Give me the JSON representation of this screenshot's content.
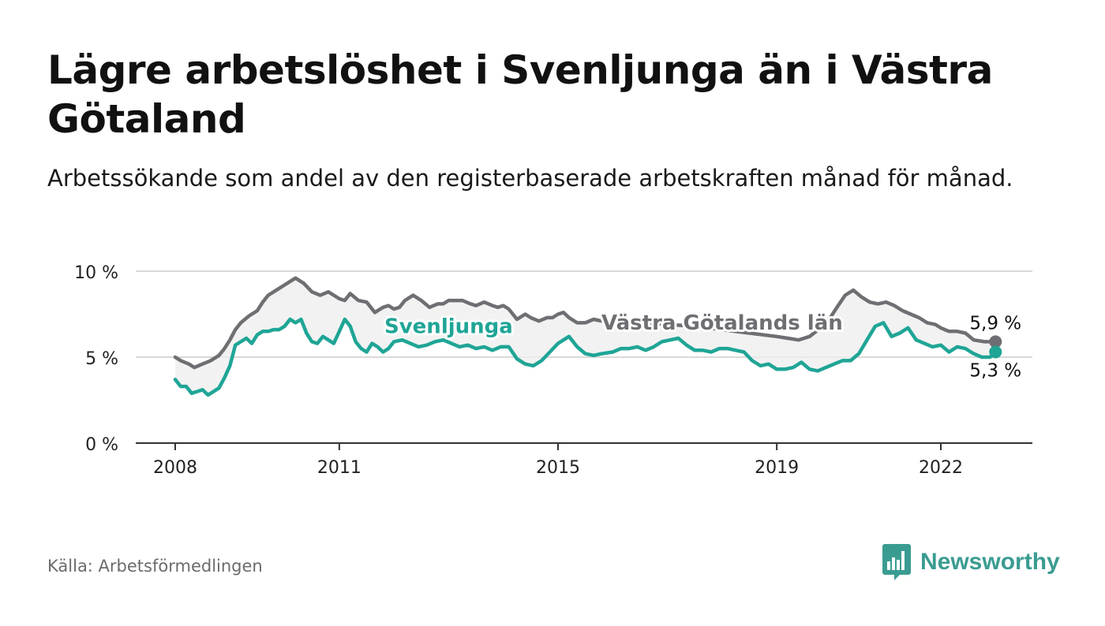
{
  "header": {
    "title": "Lägre arbetslöshet i Svenljunga än i Västra Götaland",
    "subtitle": "Arbetssökande som andel av den registerbaserade arbetskraften månad för månad."
  },
  "footer": {
    "source": "Källa: Arbetsförmedlingen",
    "brand": "Newsworthy",
    "brand_icon": "bar-chart-icon"
  },
  "colors": {
    "region": "#6e6e73",
    "municipality": "#1fa596",
    "band": "#ededed",
    "grid": "#d9d9d9",
    "axis": "#333333",
    "brand": "#3a9c91"
  },
  "chart_data": {
    "type": "line",
    "title": "Lägre arbetslöshet i Svenljunga än i Västra Götaland",
    "xlabel": "",
    "ylabel": "",
    "xlim": [
      2007.9,
      2023.5
    ],
    "ylim": [
      0,
      10
    ],
    "y_ticks": [
      {
        "value": 0,
        "label": "0 %"
      },
      {
        "value": 5,
        "label": "5 %"
      },
      {
        "value": 10,
        "label": "10 %"
      }
    ],
    "x_ticks": [
      {
        "value": 2008,
        "label": "2008"
      },
      {
        "value": 2011,
        "label": "2011"
      },
      {
        "value": 2015,
        "label": "2015"
      },
      {
        "value": 2019,
        "label": "2019"
      },
      {
        "value": 2022,
        "label": "2022"
      }
    ],
    "grid": true,
    "series": [
      {
        "name": "Västra Götalands län",
        "color": "#6e6e73",
        "x": [
          2008.0,
          2008.1,
          2008.25,
          2008.35,
          2008.5,
          2008.65,
          2008.8,
          2008.9,
          2009.0,
          2009.1,
          2009.2,
          2009.35,
          2009.5,
          2009.6,
          2009.7,
          2009.8,
          2010.0,
          2010.2,
          2010.35,
          2010.5,
          2010.65,
          2010.8,
          2010.9,
          2011.0,
          2011.1,
          2011.2,
          2011.35,
          2011.5,
          2011.65,
          2011.8,
          2011.9,
          2012.0,
          2012.1,
          2012.2,
          2012.35,
          2012.5,
          2012.65,
          2012.8,
          2012.9,
          2013.0,
          2013.1,
          2013.25,
          2013.4,
          2013.5,
          2013.65,
          2013.8,
          2013.9,
          2014.0,
          2014.1,
          2014.25,
          2014.4,
          2014.5,
          2014.65,
          2014.8,
          2014.9,
          2015.0,
          2015.1,
          2015.2,
          2015.35,
          2015.5,
          2015.65,
          2015.8,
          2016.0,
          2016.5,
          2017.0,
          2017.5,
          2018.0,
          2018.5,
          2019.0,
          2019.2,
          2019.4,
          2019.6,
          2019.8,
          2020.0,
          2020.1,
          2020.25,
          2020.4,
          2020.55,
          2020.7,
          2020.85,
          2021.0,
          2021.15,
          2021.3,
          2021.45,
          2021.6,
          2021.75,
          2021.9,
          2022.0,
          2022.15,
          2022.3,
          2022.45,
          2022.6,
          2022.8,
          2023.0
        ],
        "values": [
          5.0,
          4.8,
          4.6,
          4.4,
          4.6,
          4.8,
          5.1,
          5.5,
          6.0,
          6.6,
          7.0,
          7.4,
          7.7,
          8.2,
          8.6,
          8.8,
          9.2,
          9.6,
          9.3,
          8.8,
          8.6,
          8.8,
          8.6,
          8.4,
          8.3,
          8.7,
          8.3,
          8.2,
          7.6,
          7.9,
          8.0,
          7.8,
          7.9,
          8.3,
          8.6,
          8.3,
          7.9,
          8.1,
          8.1,
          8.3,
          8.3,
          8.3,
          8.1,
          8.0,
          8.2,
          8.0,
          7.9,
          8.0,
          7.8,
          7.2,
          7.5,
          7.3,
          7.1,
          7.3,
          7.3,
          7.5,
          7.6,
          7.3,
          7.0,
          7.0,
          7.2,
          7.1,
          7.0,
          7.0,
          6.9,
          6.8,
          6.6,
          6.4,
          6.2,
          6.1,
          6.0,
          6.2,
          6.7,
          7.4,
          7.9,
          8.6,
          8.9,
          8.5,
          8.2,
          8.1,
          8.2,
          8.0,
          7.7,
          7.5,
          7.3,
          7.0,
          6.9,
          6.7,
          6.5,
          6.5,
          6.4,
          6.0,
          5.9,
          5.9
        ]
      },
      {
        "name": "Svenljunga",
        "color": "#1fa596",
        "x": [
          2008.0,
          2008.1,
          2008.2,
          2008.3,
          2008.4,
          2008.5,
          2008.6,
          2008.7,
          2008.8,
          2008.9,
          2009.0,
          2009.1,
          2009.2,
          2009.3,
          2009.4,
          2009.5,
          2009.6,
          2009.7,
          2009.8,
          2009.9,
          2010.0,
          2010.1,
          2010.2,
          2010.3,
          2010.4,
          2010.5,
          2010.6,
          2010.7,
          2010.8,
          2010.9,
          2011.0,
          2011.1,
          2011.2,
          2011.3,
          2011.4,
          2011.5,
          2011.6,
          2011.7,
          2011.8,
          2011.9,
          2012.0,
          2012.15,
          2012.3,
          2012.45,
          2012.6,
          2012.75,
          2012.9,
          2013.05,
          2013.2,
          2013.35,
          2013.5,
          2013.65,
          2013.8,
          2013.95,
          2014.1,
          2014.25,
          2014.4,
          2014.55,
          2014.7,
          2014.85,
          2015.0,
          2015.1,
          2015.2,
          2015.35,
          2015.5,
          2015.65,
          2015.8,
          2016.0,
          2016.15,
          2016.3,
          2016.45,
          2016.6,
          2016.75,
          2016.9,
          2017.05,
          2017.2,
          2017.35,
          2017.5,
          2017.65,
          2017.8,
          2017.95,
          2018.1,
          2018.25,
          2018.4,
          2018.55,
          2018.7,
          2018.85,
          2019.0,
          2019.15,
          2019.3,
          2019.45,
          2019.6,
          2019.75,
          2019.9,
          2020.05,
          2020.2,
          2020.35,
          2020.5,
          2020.65,
          2020.8,
          2020.95,
          2021.1,
          2021.25,
          2021.4,
          2021.55,
          2021.7,
          2021.85,
          2022.0,
          2022.15,
          2022.3,
          2022.45,
          2022.6,
          2022.75,
          2022.9,
          2023.0
        ],
        "values": [
          3.7,
          3.3,
          3.3,
          2.9,
          3.0,
          3.1,
          2.8,
          3.0,
          3.2,
          3.8,
          4.5,
          5.7,
          5.9,
          6.1,
          5.8,
          6.3,
          6.5,
          6.5,
          6.6,
          6.6,
          6.8,
          7.2,
          7.0,
          7.2,
          6.4,
          5.9,
          5.8,
          6.2,
          6.0,
          5.8,
          6.5,
          7.2,
          6.8,
          5.9,
          5.5,
          5.3,
          5.8,
          5.6,
          5.3,
          5.5,
          5.9,
          6.0,
          5.8,
          5.6,
          5.7,
          5.9,
          6.0,
          5.8,
          5.6,
          5.7,
          5.5,
          5.6,
          5.4,
          5.6,
          5.6,
          4.9,
          4.6,
          4.5,
          4.8,
          5.3,
          5.8,
          6.0,
          6.2,
          5.6,
          5.2,
          5.1,
          5.2,
          5.3,
          5.5,
          5.5,
          5.6,
          5.4,
          5.6,
          5.9,
          6.0,
          6.1,
          5.7,
          5.4,
          5.4,
          5.3,
          5.5,
          5.5,
          5.4,
          5.3,
          4.8,
          4.5,
          4.6,
          4.3,
          4.3,
          4.4,
          4.7,
          4.3,
          4.2,
          4.4,
          4.6,
          4.8,
          4.8,
          5.2,
          6.0,
          6.8,
          7.0,
          6.2,
          6.4,
          6.7,
          6.0,
          5.8,
          5.6,
          5.7,
          5.3,
          5.6,
          5.5,
          5.2,
          5.0,
          5.0,
          5.3
        ]
      }
    ],
    "annotations": [
      {
        "text": "Svenljunga",
        "series": "Svenljunga",
        "x": 2013.0,
        "y": 6.4
      },
      {
        "text": "Västra Götalands län",
        "series": "Västra Götalands län",
        "x": 2018.0,
        "y": 6.6
      },
      {
        "text": "5,9 %",
        "series": "Västra Götalands län",
        "x": 2023.0,
        "y": 5.9
      },
      {
        "text": "5,3 %",
        "series": "Svenljunga",
        "x": 2023.0,
        "y": 5.3
      }
    ]
  }
}
